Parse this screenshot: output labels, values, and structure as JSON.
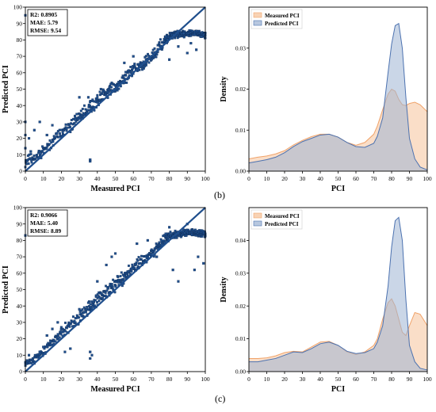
{
  "panel_labels": [
    "(b)",
    "(c)"
  ],
  "colors": {
    "scatter_fill": "#1f4e8c",
    "scatter_edge": "#0d2a52",
    "measured_fill": "#f6c39b",
    "measured_line": "#f0a36a",
    "predicted_fill": "#9fb4d4",
    "predicted_line": "#4c72b0"
  },
  "chart_data": [
    {
      "type": "scatter",
      "panel": "(b)",
      "xlabel": "Measured PCI",
      "ylabel": "Predicted PCI",
      "xlim": [
        0,
        100
      ],
      "ylim": [
        0,
        100
      ],
      "xticks": [
        "0",
        "10",
        "20",
        "30",
        "40",
        "50",
        "60",
        "70",
        "80",
        "90",
        "100"
      ],
      "yticks": [
        "0",
        "10",
        "20",
        "30",
        "40",
        "50",
        "60",
        "70",
        "80",
        "90",
        "100"
      ],
      "metrics": [
        "R2: 0.8905",
        "MAE: 5.79",
        "RMSE: 9.54"
      ],
      "band": {
        "x": [
          0,
          5,
          10,
          20,
          30,
          40,
          50,
          60,
          70,
          75,
          80,
          85,
          90,
          95,
          100
        ],
        "lo": [
          1,
          3,
          7,
          17,
          26,
          36,
          45,
          55,
          63,
          70,
          78,
          80,
          81,
          81,
          80
        ],
        "hi": [
          10,
          14,
          18,
          30,
          40,
          50,
          58,
          68,
          76,
          82,
          86,
          87,
          87,
          87,
          86
        ]
      },
      "outliers": [
        [
          0,
          95
        ],
        [
          0,
          30
        ],
        [
          0,
          22
        ],
        [
          0,
          14
        ],
        [
          2,
          20
        ],
        [
          3,
          12
        ],
        [
          5,
          25
        ],
        [
          8,
          30
        ],
        [
          12,
          22
        ],
        [
          15,
          28
        ],
        [
          36,
          6
        ],
        [
          36,
          7
        ],
        [
          30,
          45
        ],
        [
          35,
          45
        ],
        [
          42,
          50
        ],
        [
          55,
          66
        ],
        [
          60,
          70
        ],
        [
          65,
          62
        ],
        [
          72,
          70
        ],
        [
          78,
          82
        ],
        [
          80,
          68
        ],
        [
          85,
          76
        ],
        [
          90,
          72
        ],
        [
          92,
          78
        ],
        [
          95,
          74
        ],
        [
          98,
          82
        ],
        [
          88,
          84
        ]
      ],
      "diagonal": [
        [
          0,
          0
        ],
        [
          100,
          100
        ]
      ]
    },
    {
      "type": "area",
      "panel": "(b)",
      "xlabel": "PCI",
      "ylabel": "Density",
      "xlim": [
        0,
        100
      ],
      "ylim": [
        0,
        0.04
      ],
      "xticks": [
        "0",
        "10",
        "20",
        "30",
        "40",
        "50",
        "60",
        "70",
        "80",
        "90",
        "100"
      ],
      "yticks": [
        "0.00",
        "0.01",
        "0.02",
        "0.03"
      ],
      "ytick_values": [
        0,
        0.01,
        0.02,
        0.03
      ],
      "x": [
        0,
        5,
        10,
        15,
        20,
        25,
        30,
        35,
        40,
        45,
        50,
        55,
        60,
        65,
        70,
        72,
        75,
        78,
        80,
        82,
        84,
        86,
        88,
        90,
        93,
        96,
        100
      ],
      "series": [
        {
          "name": "Measured PCI",
          "values": [
            0.003,
            0.0034,
            0.0037,
            0.0042,
            0.005,
            0.0064,
            0.0075,
            0.0084,
            0.009,
            0.009,
            0.0083,
            0.007,
            0.0063,
            0.007,
            0.009,
            0.011,
            0.015,
            0.0188,
            0.02,
            0.0195,
            0.0175,
            0.0162,
            0.016,
            0.0165,
            0.0168,
            0.0162,
            0.0145
          ]
        },
        {
          "name": "Predicted PCI",
          "values": [
            0.002,
            0.0024,
            0.0028,
            0.0034,
            0.0045,
            0.006,
            0.0072,
            0.008,
            0.0088,
            0.009,
            0.0083,
            0.007,
            0.006,
            0.0058,
            0.0068,
            0.0085,
            0.013,
            0.024,
            0.031,
            0.0355,
            0.036,
            0.03,
            0.018,
            0.008,
            0.003,
            0.001,
            0.0003
          ]
        }
      ]
    },
    {
      "type": "scatter",
      "panel": "(c)",
      "xlabel": "Measured PCI",
      "ylabel": "Predicted PCI",
      "xlim": [
        0,
        100
      ],
      "ylim": [
        0,
        100
      ],
      "xticks": [
        "0",
        "10",
        "20",
        "30",
        "40",
        "50",
        "60",
        "70",
        "80",
        "90",
        "100"
      ],
      "yticks": [
        "0",
        "10",
        "20",
        "30",
        "40",
        "50",
        "60",
        "70",
        "80",
        "90",
        "100"
      ],
      "metrics": [
        "R2: 0.9066",
        "MAE: 5.40",
        "RMSE: 8.89"
      ],
      "band": {
        "x": [
          0,
          5,
          10,
          20,
          30,
          40,
          50,
          60,
          70,
          75,
          80,
          85,
          90,
          95,
          100
        ],
        "lo": [
          2,
          3,
          7,
          18,
          27,
          37,
          46,
          56,
          66,
          72,
          78,
          80,
          81,
          81,
          80
        ],
        "hi": [
          9,
          12,
          17,
          29,
          40,
          51,
          60,
          70,
          78,
          84,
          87,
          88,
          88,
          88,
          88
        ]
      },
      "outliers": [
        [
          0,
          83
        ],
        [
          2,
          10
        ],
        [
          5,
          5
        ],
        [
          8,
          12
        ],
        [
          10,
          15
        ],
        [
          12,
          22
        ],
        [
          15,
          26
        ],
        [
          18,
          30
        ],
        [
          20,
          27
        ],
        [
          22,
          12
        ],
        [
          25,
          14
        ],
        [
          30,
          38
        ],
        [
          35,
          42
        ],
        [
          36,
          8
        ],
        [
          37,
          10
        ],
        [
          36,
          12
        ],
        [
          40,
          55
        ],
        [
          45,
          65
        ],
        [
          48,
          70
        ],
        [
          50,
          72
        ],
        [
          55,
          58
        ],
        [
          62,
          78
        ],
        [
          68,
          80
        ],
        [
          73,
          70
        ],
        [
          78,
          84
        ],
        [
          80,
          88
        ],
        [
          82,
          62
        ],
        [
          85,
          55
        ],
        [
          90,
          90
        ],
        [
          94,
          62
        ],
        [
          96,
          70
        ],
        [
          99,
          66
        ]
      ],
      "diagonal": [
        [
          0,
          0
        ],
        [
          100,
          100
        ]
      ]
    },
    {
      "type": "area",
      "panel": "(c)",
      "xlabel": "PCI",
      "ylabel": "Density",
      "xlim": [
        0,
        100
      ],
      "ylim": [
        0,
        0.05
      ],
      "xticks": [
        "0",
        "10",
        "20",
        "30",
        "40",
        "50",
        "60",
        "70",
        "80",
        "90",
        "100"
      ],
      "yticks": [
        "0.00",
        "0.01",
        "0.02",
        "0.03",
        "0.04"
      ],
      "ytick_values": [
        0,
        0.01,
        0.02,
        0.03,
        0.04
      ],
      "x": [
        0,
        5,
        10,
        15,
        20,
        25,
        30,
        35,
        40,
        45,
        50,
        55,
        60,
        65,
        70,
        72,
        75,
        78,
        80,
        82,
        84,
        86,
        88,
        90,
        93,
        96,
        100
      ],
      "series": [
        {
          "name": "Measured PCI",
          "values": [
            0.004,
            0.004,
            0.0042,
            0.0048,
            0.0058,
            0.0062,
            0.006,
            0.0075,
            0.009,
            0.0092,
            0.008,
            0.006,
            0.0052,
            0.006,
            0.008,
            0.01,
            0.016,
            0.021,
            0.0222,
            0.02,
            0.016,
            0.012,
            0.011,
            0.014,
            0.018,
            0.0175,
            0.014
          ]
        },
        {
          "name": "Predicted PCI",
          "values": [
            0.003,
            0.003,
            0.0035,
            0.004,
            0.005,
            0.006,
            0.0058,
            0.007,
            0.0085,
            0.009,
            0.008,
            0.0062,
            0.0055,
            0.0058,
            0.007,
            0.009,
            0.014,
            0.026,
            0.038,
            0.046,
            0.047,
            0.04,
            0.022,
            0.008,
            0.003,
            0.001,
            0.0005
          ]
        }
      ]
    }
  ]
}
